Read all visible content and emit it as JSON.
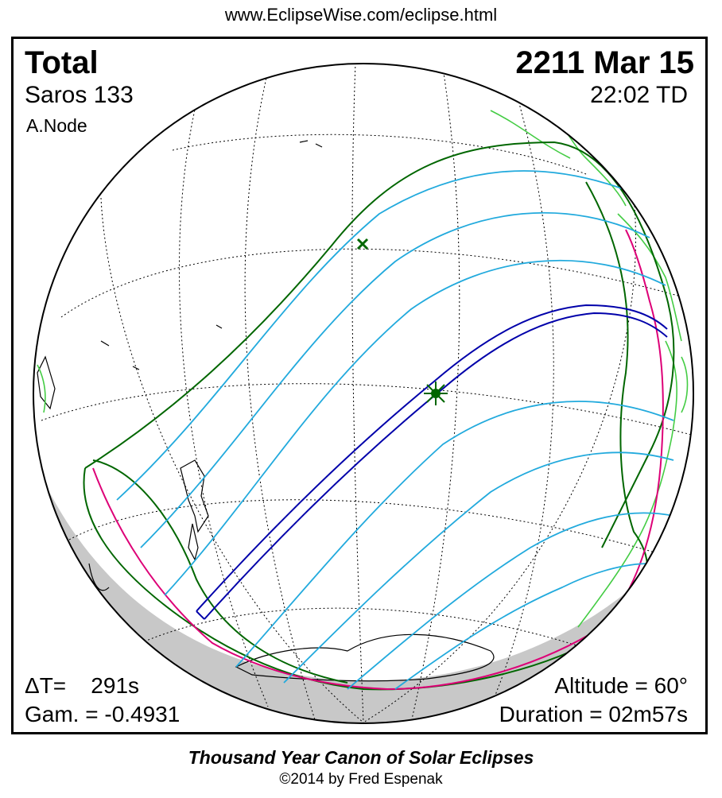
{
  "header": {
    "url": "www.EclipseWise.com/eclipse.html"
  },
  "eclipse": {
    "type": "Total",
    "saros": "Saros 133",
    "node": "A.Node",
    "date": "2211 Mar 15",
    "time": "22:02 TD"
  },
  "stats": {
    "delta_t_label": "ΔT=",
    "delta_t_value": "291s",
    "gamma": "Gam. = -0.4931",
    "altitude": "Altitude = 60°",
    "duration": "Duration = 02m57s"
  },
  "footer": {
    "canon": "Thousand Year Canon of Solar Eclipses",
    "copyright": "©2014 by Fred Espenak"
  },
  "colors": {
    "totality_path": "#0000aa",
    "penumbra_limit": "#006600",
    "penumbra_contours": "#22aadd",
    "rise_set_curve": "#dd0077",
    "coastline_west": "#000000",
    "coastline_americas": "#44cc44",
    "night_shading": "#c8c8c8",
    "greatest_eclipse_marker": "#006600"
  },
  "map_symbols": {
    "greatest_eclipse": "star-marker",
    "greatest_duration": "x-marker"
  }
}
